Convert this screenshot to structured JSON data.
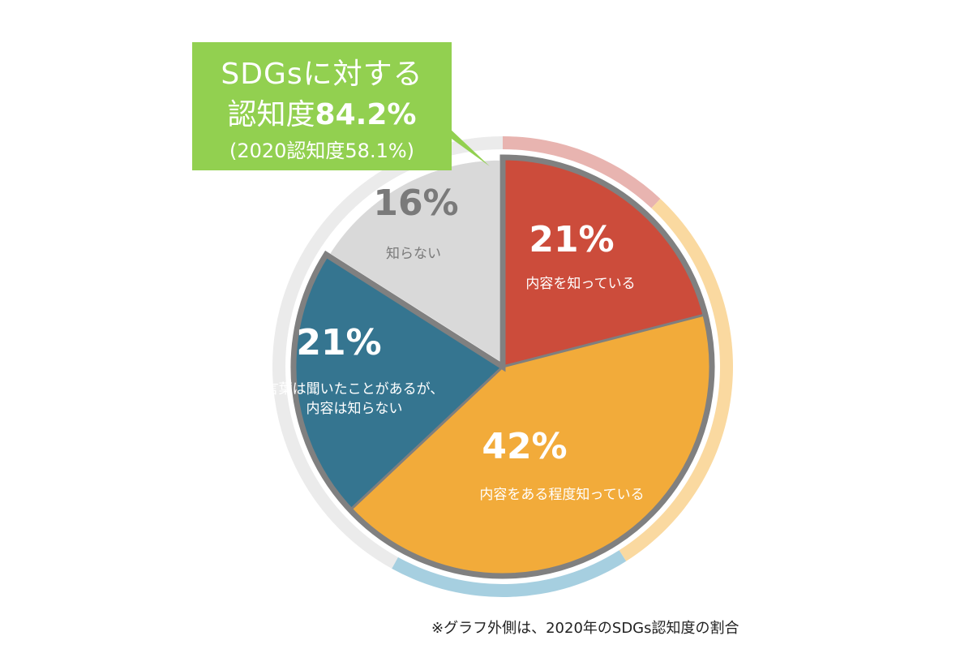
{
  "callout": {
    "line1": "SDGsに対する",
    "line2_prefix": "認知度",
    "line2_value": "84.2%",
    "line3": "(2020認知度58.1%)"
  },
  "footnote": "※グラフ外側は、2020年のSDGs認知度の割合",
  "chart_data": {
    "type": "pie",
    "title": "",
    "inner_series": {
      "categories": [
        "内容を知っている",
        "内容をある程度知っている",
        "言葉は聞いたことがあるが、内容は知らない",
        "知らない"
      ],
      "values": [
        21,
        42,
        21,
        16
      ],
      "labels": [
        "21%",
        "42%",
        "21%",
        "16%"
      ],
      "label_texts": [
        "内容を知っている",
        "内容をある程度知っている",
        "言葉は聞いたことがあるが、\n内容は知らない",
        "知らない"
      ],
      "colors": [
        "#cc4c3b",
        "#f2ab3a",
        "#357590",
        "#d9d9d9"
      ],
      "label_colors": [
        "#ffffff",
        "#ffffff",
        "#ffffff",
        "#7a7a7a"
      ],
      "highlighted": [
        true,
        true,
        true,
        false
      ]
    },
    "outer_series": {
      "colors": [
        "#e8b4b0",
        "#fad9a0",
        "#a6cfe0",
        "#ebebeb"
      ],
      "values": [
        12,
        29,
        17,
        42
      ]
    }
  }
}
